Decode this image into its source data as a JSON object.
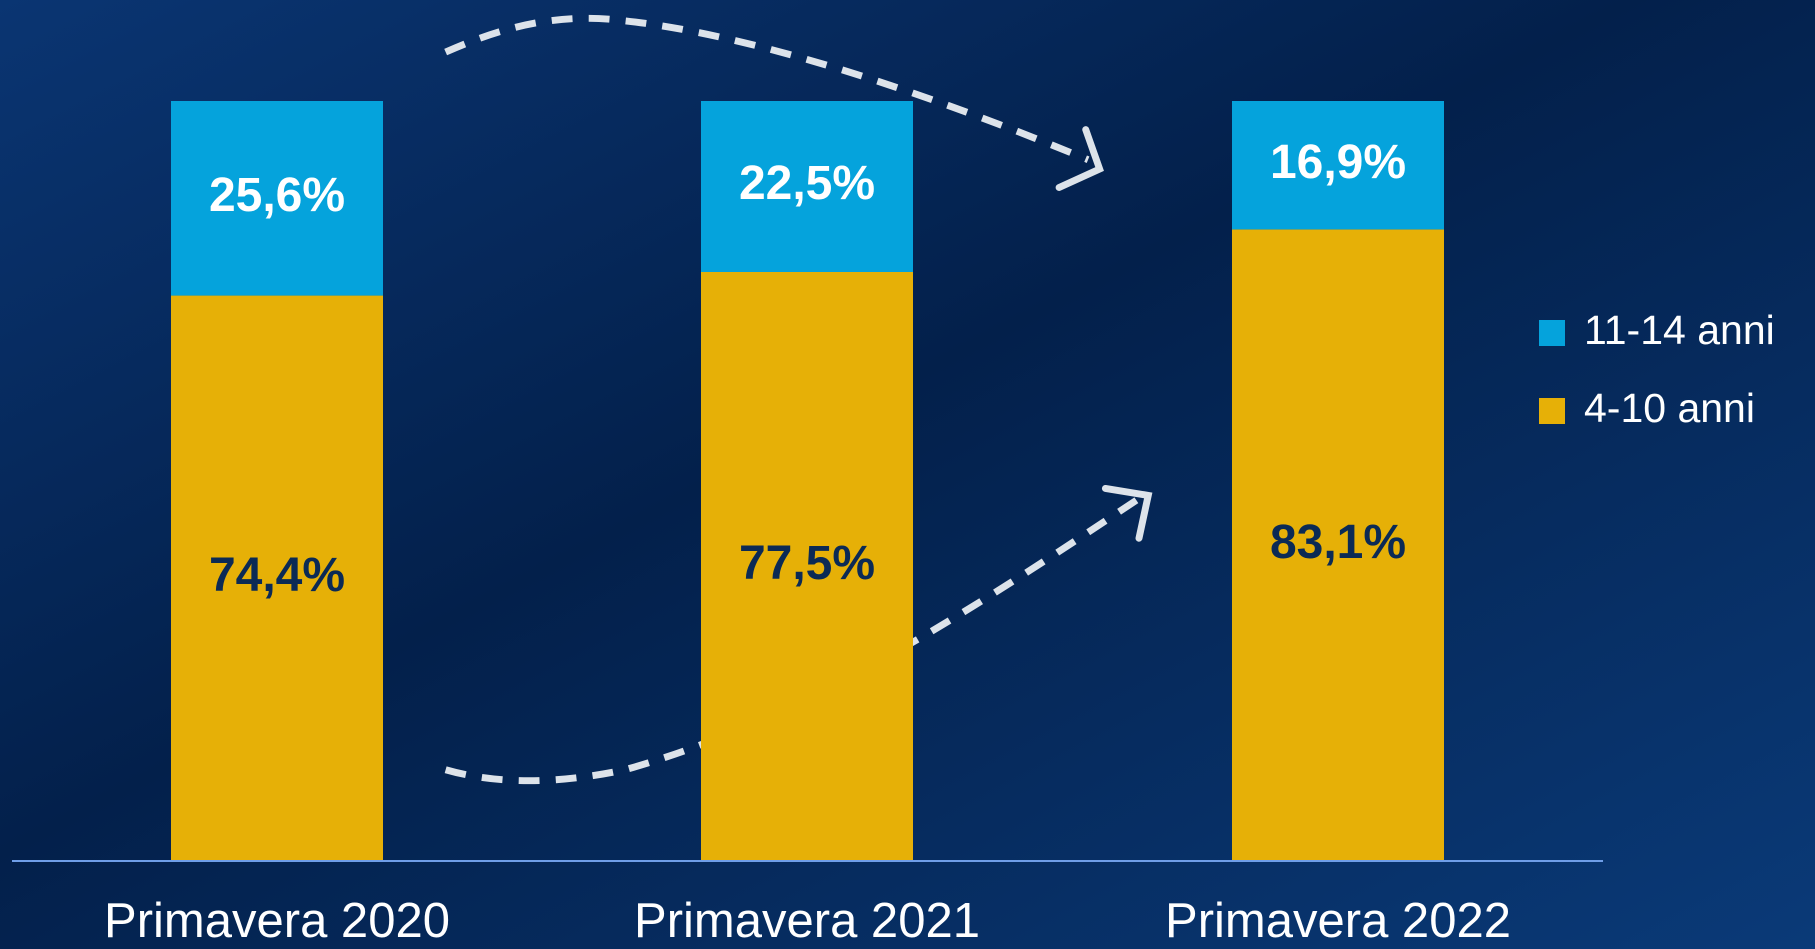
{
  "chart_data": {
    "type": "bar",
    "stacked": true,
    "categories": [
      "Primavera 2020",
      "Primavera 2021",
      "Primavera 2022"
    ],
    "series": [
      {
        "name": "4-10 anni",
        "color": "#e6b007",
        "values": [
          74.4,
          77.5,
          83.1
        ],
        "value_labels": [
          "74,4%",
          "77,5%",
          "83,1%"
        ],
        "label_color": "#0b2a55"
      },
      {
        "name": "11-14 anni",
        "color": "#05a3dc",
        "values": [
          25.6,
          22.5,
          16.9
        ],
        "value_labels": [
          "25,6%",
          "22,5%",
          "16,9%"
        ],
        "label_color": "#ffffff"
      }
    ],
    "ylim": [
      0,
      100
    ],
    "legend": "right"
  }
}
